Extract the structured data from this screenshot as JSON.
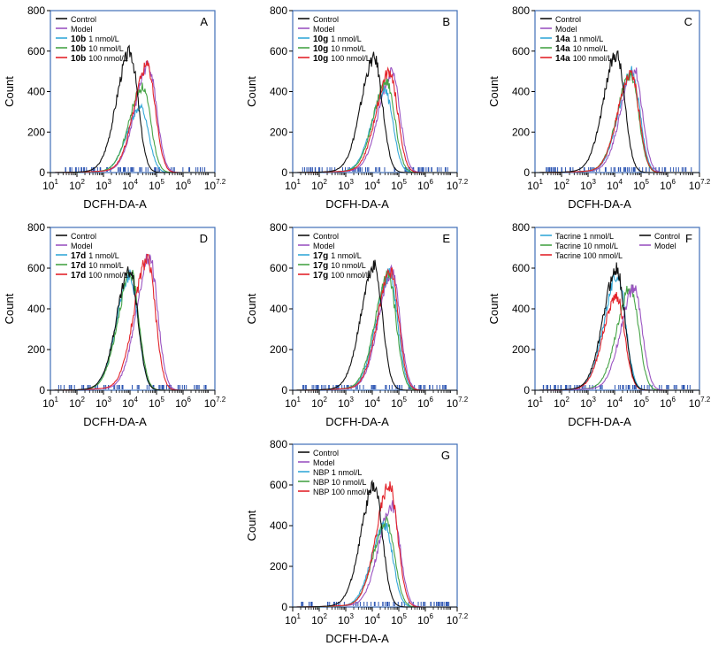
{
  "colors": {
    "control": "#111111",
    "model": "#9b55c2",
    "dose1": "#35a8d8",
    "dose10": "#47a447",
    "dose100": "#e3242b",
    "frame": "#3f6fb8",
    "rug": "#2c55b3"
  },
  "shared": {
    "ylabel": "Count",
    "xlabel": "DCFH-DA-A",
    "yticks": [
      "0",
      "200",
      "400",
      "600",
      "800"
    ],
    "xticks": [
      {
        "base": "10",
        "exp": "1"
      },
      {
        "base": "10",
        "exp": "2"
      },
      {
        "base": "10",
        "exp": "3"
      },
      {
        "base": "10",
        "exp": "4"
      },
      {
        "base": "10",
        "exp": "5"
      },
      {
        "base": "10",
        "exp": "6"
      },
      {
        "base": "10",
        "exp": "7.2"
      }
    ]
  },
  "chart_data": [
    {
      "type": "line",
      "panel": "A",
      "x_scale": "log10",
      "xlim": [
        10,
        15848932
      ],
      "ylim": [
        0,
        800
      ],
      "legend": [
        "Control",
        "Model",
        "10b 1 nmol/L",
        "10b 10 nmol/L",
        "10b 100 nmol/L"
      ],
      "series": [
        {
          "name": "Control",
          "color_key": "control",
          "peak_x": 10000,
          "peak_count": 590
        },
        {
          "name": "Model",
          "color_key": "model",
          "peak_x": 50000,
          "peak_count": 530
        },
        {
          "name_prefix": "10b",
          "name_suffix": "1 nmol/L",
          "color_key": "dose1",
          "peak_x": 25000,
          "peak_count": 320
        },
        {
          "name_prefix": "10b",
          "name_suffix": "10 nmol/L",
          "color_key": "dose10",
          "peak_x": 30000,
          "peak_count": 420
        },
        {
          "name_prefix": "10b",
          "name_suffix": "100 nmol/L",
          "color_key": "dose100",
          "peak_x": 45000,
          "peak_count": 525
        }
      ]
    },
    {
      "type": "line",
      "panel": "B",
      "x_scale": "log10",
      "xlim": [
        10,
        15848932
      ],
      "ylim": [
        0,
        800
      ],
      "series": [
        {
          "name": "Control",
          "color_key": "control",
          "peak_x": 12000,
          "peak_count": 560
        },
        {
          "name": "Model",
          "color_key": "model",
          "peak_x": 55000,
          "peak_count": 490
        },
        {
          "name_prefix": "10g",
          "name_suffix": "1 nmol/L",
          "color_key": "dose1",
          "peak_x": 30000,
          "peak_count": 400
        },
        {
          "name_prefix": "10g",
          "name_suffix": "10 nmol/L",
          "color_key": "dose10",
          "peak_x": 35000,
          "peak_count": 450
        },
        {
          "name_prefix": "10g",
          "name_suffix": "100 nmol/L",
          "color_key": "dose100",
          "peak_x": 45000,
          "peak_count": 495
        }
      ]
    },
    {
      "type": "line",
      "panel": "C",
      "x_scale": "log10",
      "xlim": [
        10,
        15848932
      ],
      "ylim": [
        0,
        800
      ],
      "series": [
        {
          "name": "Control",
          "color_key": "control",
          "peak_x": 12000,
          "peak_count": 580
        },
        {
          "name": "Model",
          "color_key": "model",
          "peak_x": 55000,
          "peak_count": 510
        },
        {
          "name_prefix": "14a",
          "name_suffix": "1 nmol/L",
          "color_key": "dose1",
          "peak_x": 45000,
          "peak_count": 500
        },
        {
          "name_prefix": "14a",
          "name_suffix": "10 nmol/L",
          "color_key": "dose10",
          "peak_x": 40000,
          "peak_count": 480
        },
        {
          "name_prefix": "14a",
          "name_suffix": "100 nmol/L",
          "color_key": "dose100",
          "peak_x": 42000,
          "peak_count": 490
        }
      ]
    },
    {
      "type": "line",
      "panel": "D",
      "x_scale": "log10",
      "xlim": [
        10,
        15848932
      ],
      "ylim": [
        0,
        800
      ],
      "series": [
        {
          "name": "Control",
          "color_key": "control",
          "peak_x": 10000,
          "peak_count": 580
        },
        {
          "name": "Model",
          "color_key": "model",
          "peak_x": 55000,
          "peak_count": 650
        },
        {
          "name_prefix": "17d",
          "name_suffix": "1 nmol/L",
          "color_key": "dose1",
          "peak_x": 10000,
          "peak_count": 560
        },
        {
          "name_prefix": "17d",
          "name_suffix": "10 nmol/L",
          "color_key": "dose10",
          "peak_x": 11000,
          "peak_count": 565
        },
        {
          "name_prefix": "17d",
          "name_suffix": "100 nmol/L",
          "color_key": "dose100",
          "peak_x": 45000,
          "peak_count": 640
        }
      ]
    },
    {
      "type": "line",
      "panel": "E",
      "x_scale": "log10",
      "xlim": [
        10,
        15848932
      ],
      "ylim": [
        0,
        800
      ],
      "series": [
        {
          "name": "Control",
          "color_key": "control",
          "peak_x": 12000,
          "peak_count": 605
        },
        {
          "name": "Model",
          "color_key": "model",
          "peak_x": 55000,
          "peak_count": 580
        },
        {
          "name_prefix": "17g",
          "name_suffix": "1 nmol/L",
          "color_key": "dose1",
          "peak_x": 45000,
          "peak_count": 570
        },
        {
          "name_prefix": "17g",
          "name_suffix": "10 nmol/L",
          "color_key": "dose10",
          "peak_x": 40000,
          "peak_count": 560
        },
        {
          "name_prefix": "17g",
          "name_suffix": "100 nmol/L",
          "color_key": "dose100",
          "peak_x": 50000,
          "peak_count": 575
        }
      ]
    },
    {
      "type": "line",
      "panel": "F",
      "x_scale": "log10",
      "xlim": [
        10,
        15848932
      ],
      "ylim": [
        0,
        800
      ],
      "series": [
        {
          "name": "Tacrine 1 nmol/L",
          "color_key": "dose1",
          "peak_x": 13000,
          "peak_count": 560
        },
        {
          "name": "Tacrine 10 nmol/L",
          "color_key": "dose10",
          "peak_x": 40000,
          "peak_count": 505
        },
        {
          "name": "Tacrine 100 nmol/L",
          "color_key": "dose100",
          "peak_x": 12000,
          "peak_count": 460
        },
        {
          "name": "Control",
          "color_key": "control",
          "peak_x": 12000,
          "peak_count": 590
        },
        {
          "name": "Model",
          "color_key": "model",
          "peak_x": 55000,
          "peak_count": 500
        }
      ]
    },
    {
      "type": "line",
      "panel": "G",
      "x_scale": "log10",
      "xlim": [
        10,
        15848932
      ],
      "ylim": [
        0,
        800
      ],
      "series": [
        {
          "name": "Control",
          "color_key": "control",
          "peak_x": 12000,
          "peak_count": 590
        },
        {
          "name": "Model",
          "color_key": "model",
          "peak_x": 55000,
          "peak_count": 500
        },
        {
          "name": "NBP 1 nmol/L",
          "color_key": "dose1",
          "peak_x": 30000,
          "peak_count": 400
        },
        {
          "name": "NBP 10 nmol/L",
          "color_key": "dose10",
          "peak_x": 35000,
          "peak_count": 420
        },
        {
          "name": "NBP 100 nmol/L",
          "color_key": "dose100",
          "peak_x": 45000,
          "peak_count": 600
        }
      ]
    }
  ]
}
